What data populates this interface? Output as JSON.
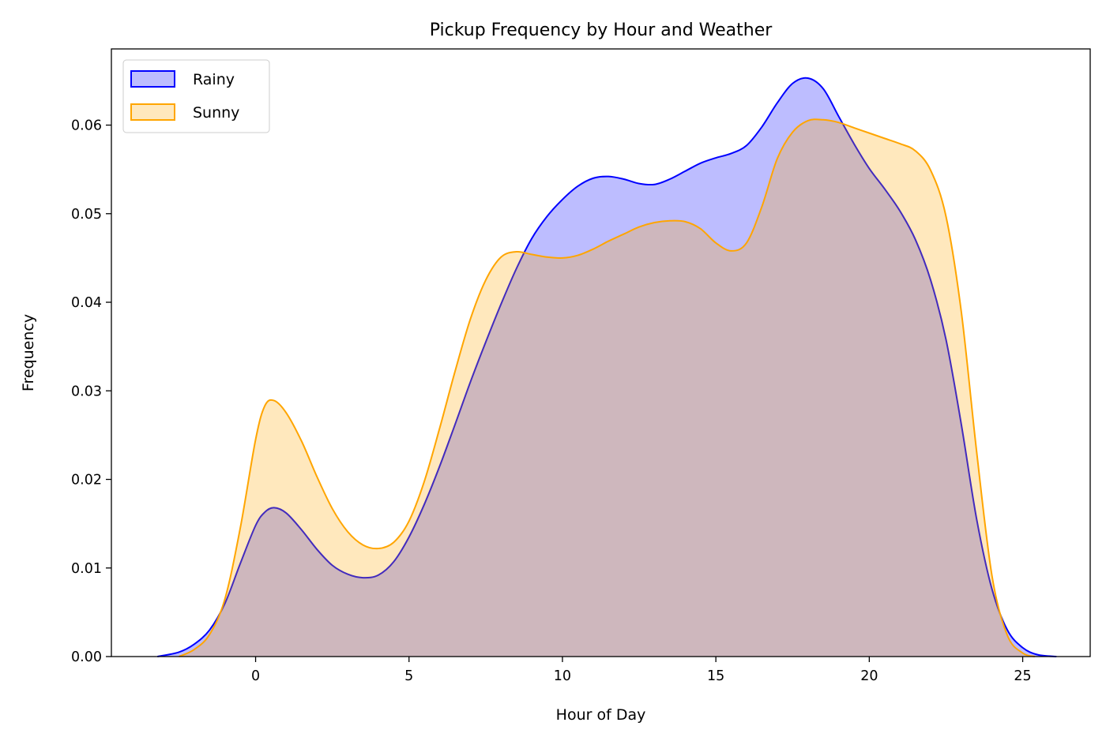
{
  "chart_data": {
    "type": "area",
    "title": "Pickup Frequency by Hour and Weather",
    "xlabel": "Hour of Day",
    "ylabel": "Frequency",
    "xlim": [
      -4.7,
      27.2
    ],
    "ylim": [
      0,
      0.0686
    ],
    "xticks": [
      0,
      5,
      10,
      15,
      20,
      25
    ],
    "yticks": [
      0.0,
      0.01,
      0.02,
      0.03,
      0.04,
      0.05,
      0.06
    ],
    "xtick_labels": [
      "0",
      "5",
      "10",
      "15",
      "20",
      "25"
    ],
    "ytick_labels": [
      "0.00",
      "0.01",
      "0.02",
      "0.03",
      "0.04",
      "0.05",
      "0.06"
    ],
    "legend_position": "top-left",
    "grid": false,
    "series": [
      {
        "name": "Rainy",
        "line_color": "#0000ff",
        "fill_color": "#0000ff",
        "fill_opacity": 0.26,
        "x": [
          -3.2,
          -2.5,
          -2.0,
          -1.5,
          -1.0,
          -0.5,
          0.0,
          0.3,
          0.6,
          1.0,
          1.5,
          2.0,
          2.5,
          3.0,
          3.5,
          4.0,
          4.5,
          5.0,
          5.5,
          6.0,
          6.5,
          7.0,
          7.5,
          8.0,
          8.5,
          9.0,
          9.5,
          10.0,
          10.5,
          11.0,
          11.5,
          12.0,
          12.5,
          13.0,
          13.5,
          14.0,
          14.5,
          15.0,
          15.5,
          16.0,
          16.5,
          17.0,
          17.5,
          18.0,
          18.5,
          19.0,
          19.5,
          20.0,
          20.5,
          21.0,
          21.5,
          22.0,
          22.5,
          23.0,
          23.5,
          24.0,
          24.5,
          25.0,
          25.5,
          26.1
        ],
        "y": [
          0.0,
          0.0005,
          0.0014,
          0.003,
          0.006,
          0.0105,
          0.0148,
          0.0163,
          0.0168,
          0.0162,
          0.0143,
          0.0121,
          0.0103,
          0.0093,
          0.0089,
          0.0092,
          0.0107,
          0.0135,
          0.0172,
          0.0215,
          0.0262,
          0.031,
          0.0355,
          0.0398,
          0.0438,
          0.0472,
          0.0497,
          0.0516,
          0.0531,
          0.054,
          0.0542,
          0.0539,
          0.0534,
          0.0533,
          0.0539,
          0.0548,
          0.0557,
          0.0563,
          0.0568,
          0.0577,
          0.0598,
          0.0625,
          0.0647,
          0.0653,
          0.0641,
          0.061,
          0.0579,
          0.0551,
          0.0528,
          0.0503,
          0.0471,
          0.0425,
          0.0358,
          0.0262,
          0.0155,
          0.0076,
          0.003,
          0.001,
          0.0002,
          0.0
        ]
      },
      {
        "name": "Sunny",
        "line_color": "#ffa500",
        "fill_color": "#ffa500",
        "fill_opacity": 0.26,
        "x": [
          -2.5,
          -2.0,
          -1.5,
          -1.0,
          -0.5,
          0.0,
          0.3,
          0.6,
          1.0,
          1.5,
          2.0,
          2.5,
          3.0,
          3.5,
          4.0,
          4.5,
          5.0,
          5.5,
          6.0,
          6.5,
          7.0,
          7.5,
          8.0,
          8.5,
          9.0,
          9.5,
          10.0,
          10.5,
          11.0,
          11.5,
          12.0,
          12.5,
          13.0,
          13.5,
          14.0,
          14.5,
          15.0,
          15.5,
          16.0,
          16.5,
          17.0,
          17.5,
          18.0,
          18.5,
          19.0,
          19.5,
          20.0,
          20.5,
          21.0,
          21.5,
          22.0,
          22.5,
          23.0,
          23.5,
          24.0,
          24.5,
          25.0,
          25.4
        ],
        "y": [
          0.0,
          0.0008,
          0.0025,
          0.0065,
          0.0145,
          0.0245,
          0.0283,
          0.0289,
          0.0275,
          0.0243,
          0.0203,
          0.0167,
          0.0141,
          0.0126,
          0.0122,
          0.0129,
          0.0153,
          0.0198,
          0.0258,
          0.0322,
          0.0381,
          0.0425,
          0.0451,
          0.0457,
          0.0454,
          0.0451,
          0.045,
          0.0453,
          0.046,
          0.0469,
          0.0477,
          0.0485,
          0.049,
          0.0492,
          0.0491,
          0.0483,
          0.0467,
          0.0458,
          0.0467,
          0.0508,
          0.0562,
          0.0592,
          0.0605,
          0.0606,
          0.0603,
          0.0597,
          0.0591,
          0.0585,
          0.0579,
          0.0571,
          0.0549,
          0.0497,
          0.0389,
          0.0231,
          0.0091,
          0.0024,
          0.0004,
          0.0
        ]
      }
    ]
  }
}
